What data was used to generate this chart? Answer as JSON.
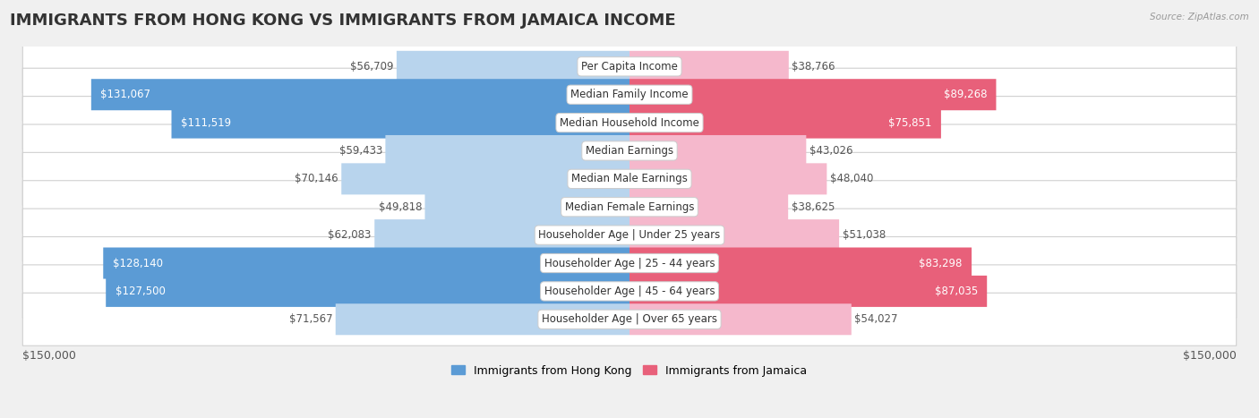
{
  "title": "IMMIGRANTS FROM HONG KONG VS IMMIGRANTS FROM JAMAICA INCOME",
  "source": "Source: ZipAtlas.com",
  "categories": [
    "Per Capita Income",
    "Median Family Income",
    "Median Household Income",
    "Median Earnings",
    "Median Male Earnings",
    "Median Female Earnings",
    "Householder Age | Under 25 years",
    "Householder Age | 25 - 44 years",
    "Householder Age | 45 - 64 years",
    "Householder Age | Over 65 years"
  ],
  "hk_values": [
    56709,
    131067,
    111519,
    59433,
    70146,
    49818,
    62083,
    128140,
    127500,
    71567
  ],
  "jamaica_values": [
    38766,
    89268,
    75851,
    43026,
    48040,
    38625,
    51038,
    83298,
    87035,
    54027
  ],
  "hk_labels": [
    "$56,709",
    "$131,067",
    "$111,519",
    "$59,433",
    "$70,146",
    "$49,818",
    "$62,083",
    "$128,140",
    "$127,500",
    "$71,567"
  ],
  "jamaica_labels": [
    "$38,766",
    "$89,268",
    "$75,851",
    "$43,026",
    "$48,040",
    "$38,625",
    "$51,038",
    "$83,298",
    "$87,035",
    "$54,027"
  ],
  "hk_color_dark": "#5b9bd5",
  "hk_color_light": "#b8d4ed",
  "jamaica_color_dark": "#e8607a",
  "jamaica_color_light": "#f5b8cc",
  "hk_threshold": 90000,
  "jamaica_threshold": 65000,
  "max_value": 150000,
  "x_label_left": "$150,000",
  "x_label_right": "$150,000",
  "legend_hk": "Immigrants from Hong Kong",
  "legend_jamaica": "Immigrants from Jamaica",
  "background_color": "#f0f0f0",
  "row_bg_color": "#ffffff",
  "title_fontsize": 13,
  "label_fontsize": 8.5,
  "category_fontsize": 8.5
}
